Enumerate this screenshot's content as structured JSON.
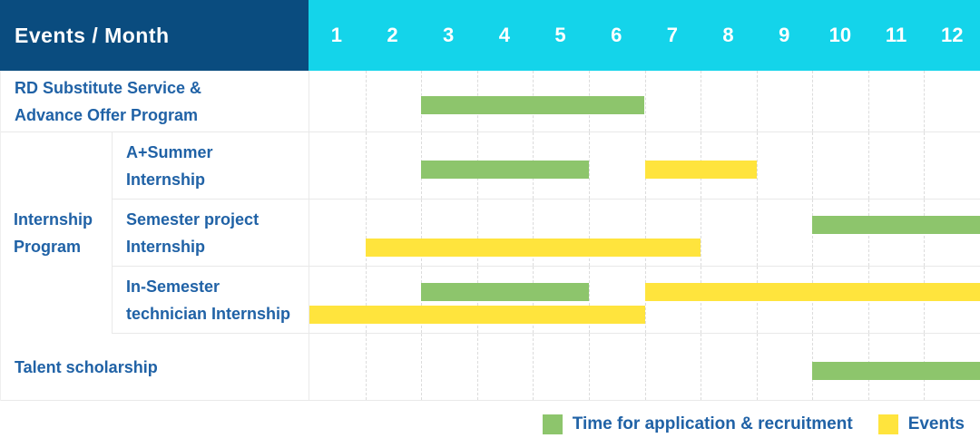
{
  "header": {
    "title": "Events / Month"
  },
  "legend": {
    "green": "Time for application & recruitment",
    "yellow": "Events"
  },
  "colors": {
    "header_navy": "#0a4c7f",
    "header_cyan": "#14d4ea",
    "green": "#8dc56c",
    "yellow": "#ffe43d",
    "label_blue": "#2062a6"
  },
  "chart_data": {
    "type": "gantt",
    "title": "Events / Month",
    "x_unit": "month",
    "x_categories": [
      "1",
      "2",
      "3",
      "4",
      "5",
      "6",
      "7",
      "8",
      "9",
      "10",
      "11",
      "12"
    ],
    "x_range": [
      1,
      12
    ],
    "grid": "dashed-vertical",
    "legend_position": "bottom-right",
    "legend": [
      {
        "key": "green",
        "label": "Time for application & recruitment"
      },
      {
        "key": "yellow",
        "label": "Events"
      }
    ],
    "rows": [
      {
        "label_lines": [
          "RD Substitute Service &",
          "Advance Offer Program"
        ],
        "lines": [
          [
            {
              "color": "green",
              "start_month": 3,
              "end_month": 6
            }
          ]
        ]
      },
      {
        "group_label_lines": [
          "Internship",
          "Program"
        ],
        "children": [
          {
            "label_lines": [
              "A+Summer",
              "Internship"
            ],
            "lines": [
              [
                {
                  "color": "green",
                  "start_month": 3,
                  "end_month": 5
                },
                {
                  "color": "yellow",
                  "start_month": 7,
                  "end_month": 8
                }
              ]
            ]
          },
          {
            "label_lines": [
              "Semester project",
              "Internship"
            ],
            "lines": [
              [
                {
                  "color": "green",
                  "start_month": 10,
                  "end_month": 12
                }
              ],
              [
                {
                  "color": "yellow",
                  "start_month": 2,
                  "end_month": 7
                }
              ]
            ]
          },
          {
            "label_lines": [
              "In-Semester",
              "technician Internship"
            ],
            "lines": [
              [
                {
                  "color": "green",
                  "start_month": 3,
                  "end_month": 5
                },
                {
                  "color": "yellow",
                  "start_month": 7,
                  "end_month": 12
                }
              ],
              [
                {
                  "color": "yellow",
                  "start_month": 1,
                  "end_month": 6
                }
              ]
            ]
          }
        ]
      },
      {
        "label_lines": [
          "Talent scholarship"
        ],
        "lines": [
          [
            {
              "color": "green",
              "start_month": 10,
              "end_month": 12
            }
          ]
        ]
      }
    ]
  }
}
